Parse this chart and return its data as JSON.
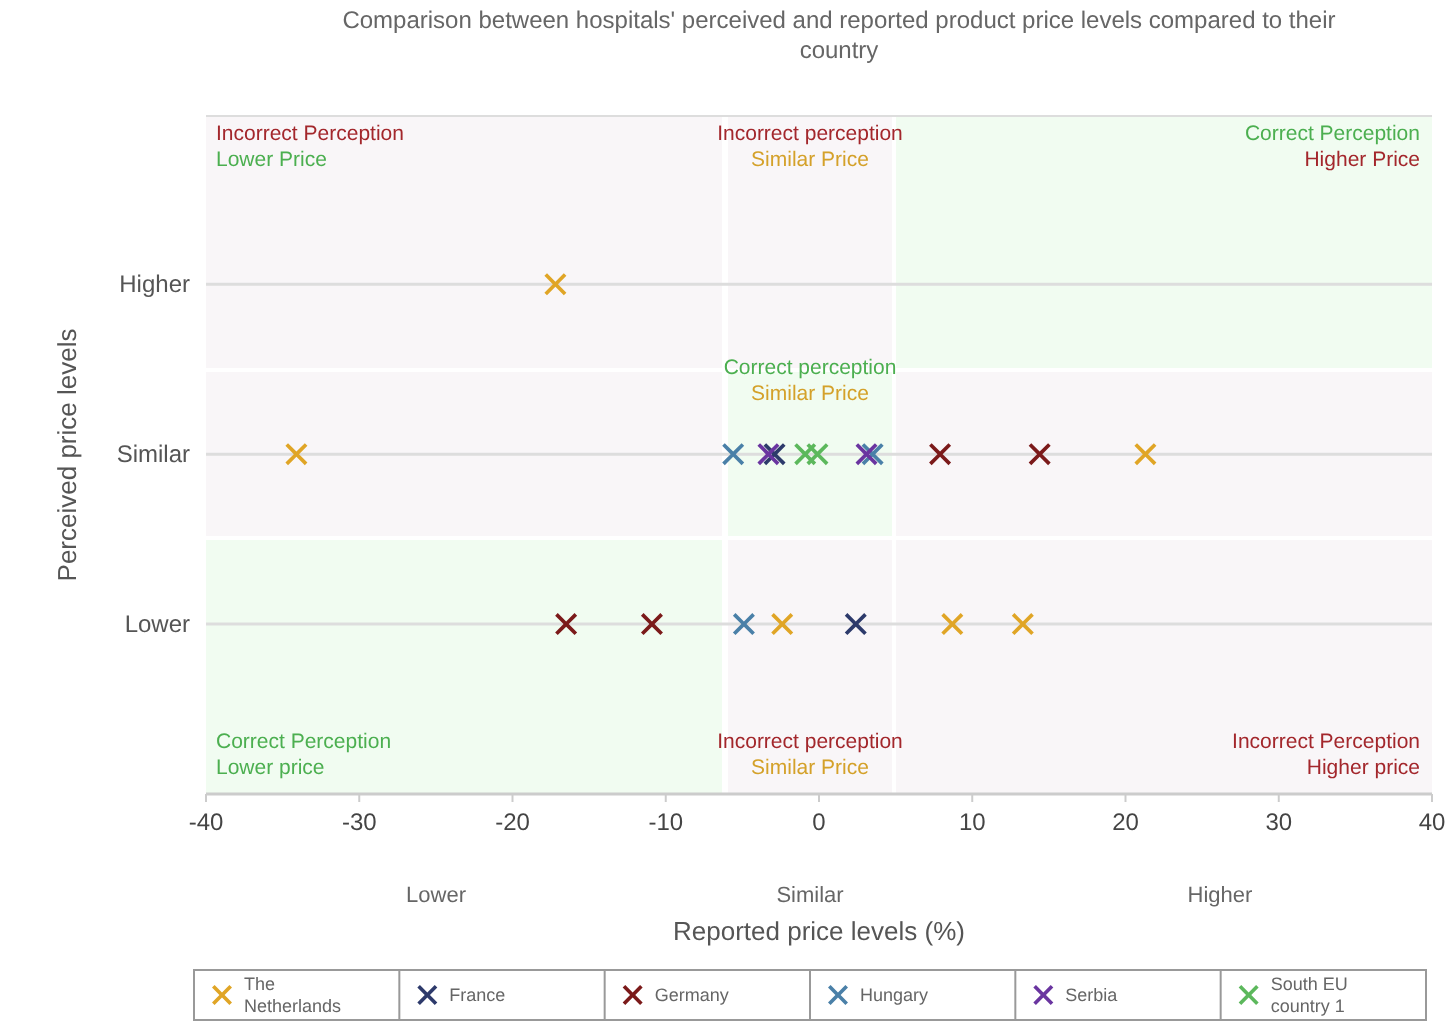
{
  "chart_data": {
    "type": "scatter",
    "orientation": "horizontal",
    "title": "Comparison between hospitals' perceived and reported product price levels compared to their country",
    "xlabel": "Reported price levels (%)",
    "ylabel": "Perceived  price levels",
    "categories": [
      "Higher",
      "Similar",
      "Lower"
    ],
    "xlim": [
      -40,
      40
    ],
    "xticks": [
      -40,
      -30,
      -20,
      -10,
      0,
      10,
      20,
      30,
      40
    ],
    "grid": "y",
    "marker": "cross",
    "legend": "bottom",
    "annotations": [
      "Incorrect Perception\nLower Price",
      "Incorrect perception\nSimilar Price",
      "Correct Perception\nHigher Price",
      "Correct perception\nSimilar Price",
      "Correct Perception\nLower price",
      "Incorrect perception\nSimilar Price",
      "Incorrect Perception\nHigher price",
      "Lower",
      "Similar",
      "Higher"
    ],
    "series": [
      {
        "name": "The Netherlands",
        "color": "#e0a526",
        "x": [
          "Higher",
          "Similar",
          "Similar",
          "Lower",
          "Lower",
          "Lower"
        ],
        "values": [
          -17.2,
          -34.1,
          21.3,
          -2.4,
          8.7,
          13.3
        ]
      },
      {
        "name": "France",
        "color": "#2d3a6b",
        "x": [
          "Similar",
          "Lower"
        ],
        "values": [
          -2.9,
          2.4
        ]
      },
      {
        "name": "Germany",
        "color": "#7b1a1a",
        "x": [
          "Similar",
          "Similar",
          "Lower",
          "Lower"
        ],
        "values": [
          7.9,
          14.4,
          -16.5,
          -10.9
        ]
      },
      {
        "name": "Hungary",
        "color": "#4a80a8",
        "x": [
          "Similar",
          "Similar",
          "Lower"
        ],
        "values": [
          -5.6,
          3.5,
          -4.9
        ]
      },
      {
        "name": "Serbia",
        "color": "#6a35a0",
        "x": [
          "Similar",
          "Similar"
        ],
        "values": [
          -3.3,
          3.1
        ]
      },
      {
        "name": "South EU country 1",
        "color": "#5cb85c",
        "x": [
          "Similar",
          "Similar"
        ],
        "values": [
          -0.9,
          -0.1
        ]
      }
    ]
  }
}
